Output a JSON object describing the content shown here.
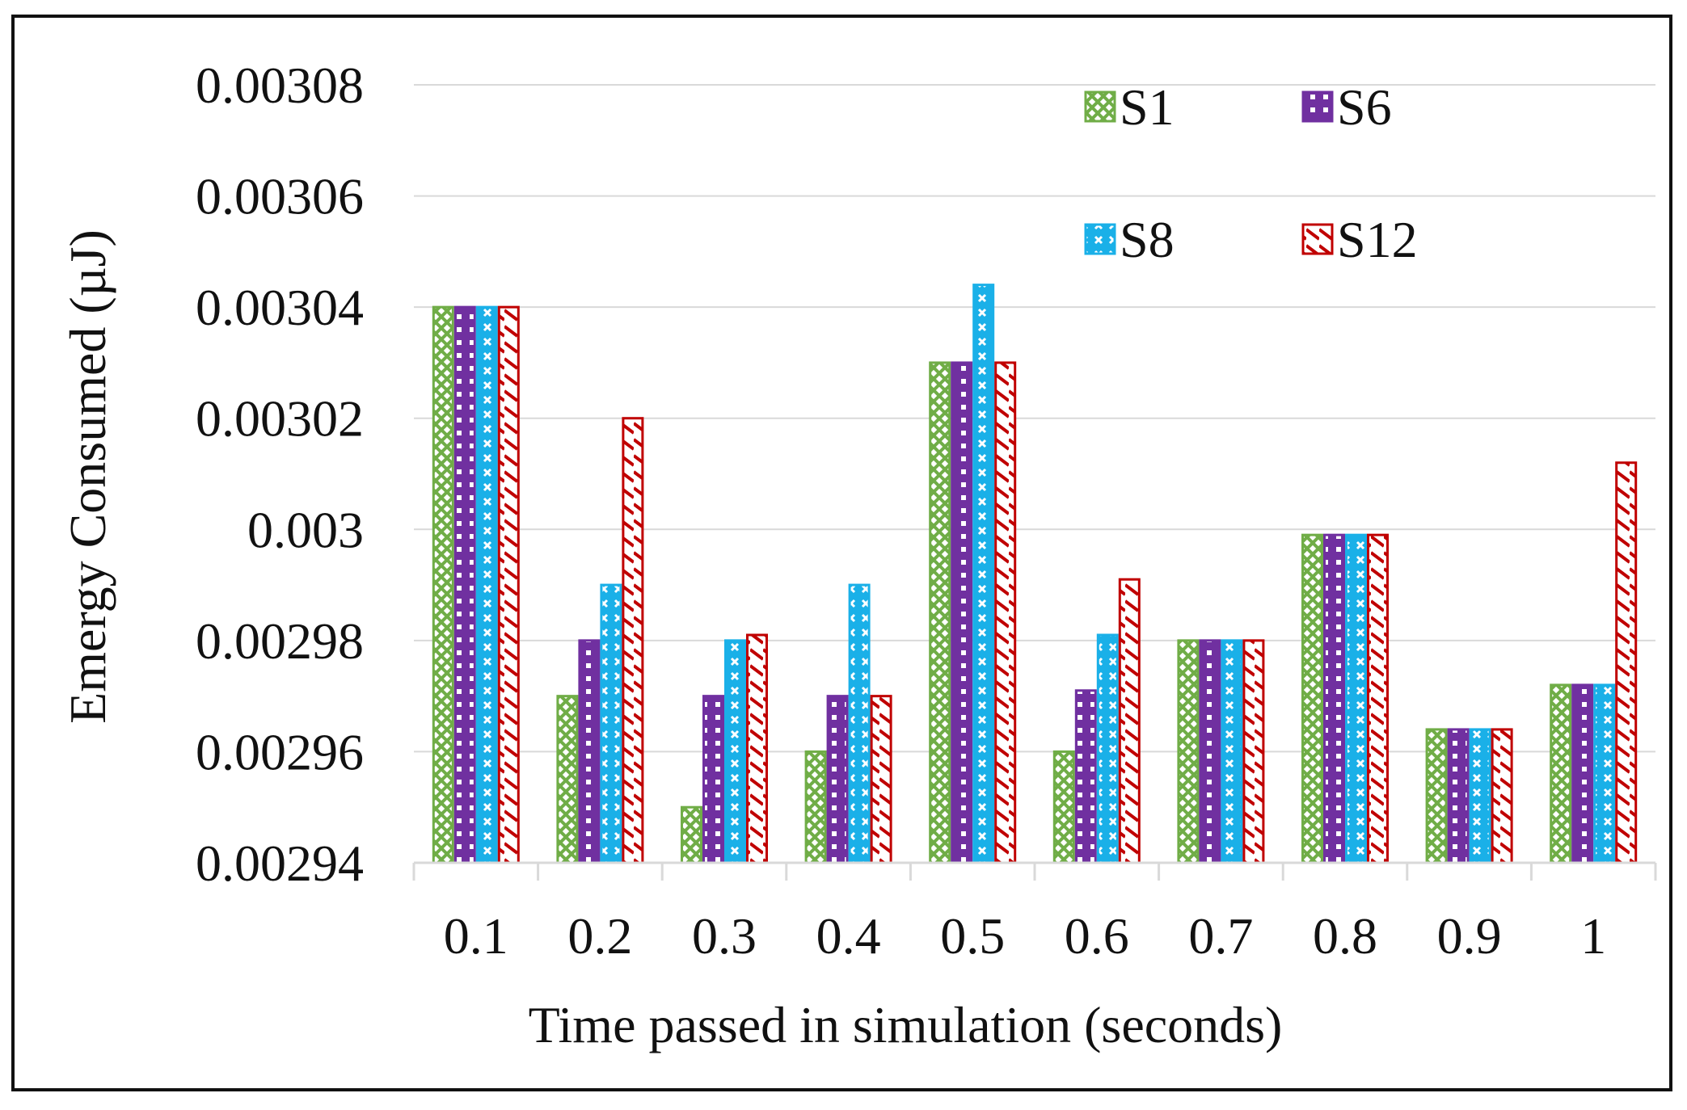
{
  "chart_data": {
    "type": "bar",
    "title": "",
    "xlabel": "Time passed in simulation  (seconds)",
    "ylabel": "Emergy Consumed (µJ)",
    "categories": [
      "0.1",
      "0.2",
      "0.3",
      "0.4",
      "0.5",
      "0.6",
      "0.7",
      "0.8",
      "0.9",
      "1"
    ],
    "ylim": [
      0.00294,
      0.00308
    ],
    "yticks": [
      "0.00294",
      "0.00296",
      "0.00298",
      "0.003",
      "0.00302",
      "0.00304",
      "0.00306",
      "0.00308"
    ],
    "grid": true,
    "legend_position": "top-right",
    "series": [
      {
        "name": "S1",
        "color": "#70ad47",
        "pattern": "pat-s1",
        "values": [
          0.00304,
          0.00297,
          0.00295,
          0.00296,
          0.00303,
          0.00296,
          0.00298,
          0.002999,
          0.002964,
          0.002972
        ]
      },
      {
        "name": "S6",
        "color": "#7030a0",
        "pattern": "pat-s6",
        "values": [
          0.00304,
          0.00298,
          0.00297,
          0.00297,
          0.00303,
          0.002971,
          0.00298,
          0.002999,
          0.002964,
          0.002972
        ]
      },
      {
        "name": "S8",
        "color": "#1ab0e8",
        "pattern": "pat-s8",
        "values": [
          0.00304,
          0.00299,
          0.00298,
          0.00299,
          0.003044,
          0.002981,
          0.00298,
          0.002999,
          0.002964,
          0.002972
        ]
      },
      {
        "name": "S12",
        "color": "#c00000",
        "pattern": "pat-s12",
        "values": [
          0.00304,
          0.00302,
          0.002981,
          0.00297,
          0.00303,
          0.002991,
          0.00298,
          0.002999,
          0.002964,
          0.003012
        ]
      }
    ]
  }
}
